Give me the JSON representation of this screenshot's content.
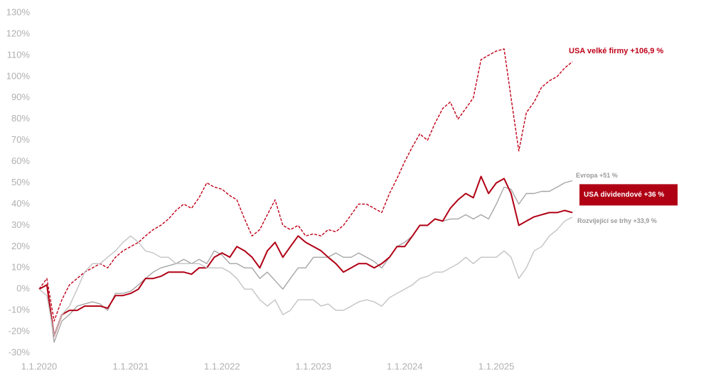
{
  "chart_data": {
    "type": "line",
    "x": [
      "2020-01-01",
      "2020-02-01",
      "2020-03-01",
      "2020-04-01",
      "2020-05-01",
      "2020-06-01",
      "2020-07-01",
      "2020-08-01",
      "2020-09-01",
      "2020-10-01",
      "2020-11-01",
      "2020-12-01",
      "2021-01-01",
      "2021-02-01",
      "2021-03-01",
      "2021-04-01",
      "2021-05-01",
      "2021-06-01",
      "2021-07-01",
      "2021-08-01",
      "2021-09-01",
      "2021-10-01",
      "2021-11-01",
      "2021-12-01",
      "2022-01-01",
      "2022-02-01",
      "2022-03-01",
      "2022-04-01",
      "2022-05-01",
      "2022-06-01",
      "2022-07-01",
      "2022-08-01",
      "2022-09-01",
      "2022-10-01",
      "2022-11-01",
      "2022-12-01",
      "2023-01-01",
      "2023-02-01",
      "2023-03-01",
      "2023-04-01",
      "2023-05-01",
      "2023-06-01",
      "2023-07-01",
      "2023-08-01",
      "2023-09-01",
      "2023-10-01",
      "2023-11-01",
      "2023-12-01",
      "2024-01-01",
      "2024-02-01",
      "2024-03-01",
      "2024-04-01",
      "2024-05-01",
      "2024-06-01",
      "2024-07-01",
      "2024-08-01",
      "2024-09-01",
      "2024-10-01",
      "2024-11-01",
      "2024-12-01",
      "2025-01-01",
      "2025-02-01",
      "2025-03-01",
      "2025-04-01",
      "2025-05-01",
      "2025-06-01",
      "2025-07-01",
      "2025-08-01",
      "2025-09-01",
      "2025-10-01",
      "2025-11-01"
    ],
    "xlim": [
      "2020-01-01",
      "2027-01-01"
    ],
    "xticks": [
      {
        "value": "2020-01-01",
        "label": "1.1.2020"
      },
      {
        "value": "2021-01-01",
        "label": "1.1.2021"
      },
      {
        "value": "2022-01-01",
        "label": "1.1.2022"
      },
      {
        "value": "2023-01-01",
        "label": "1.1.2023"
      },
      {
        "value": "2024-01-01",
        "label": "1.1.2024"
      },
      {
        "value": "2025-01-01",
        "label": "1.1.2025"
      }
    ],
    "ylim": [
      -30,
      130
    ],
    "yticks": [
      {
        "value": -30,
        "label": "-30%"
      },
      {
        "value": -20,
        "label": "-20%"
      },
      {
        "value": -10,
        "label": "-10%"
      },
      {
        "value": 0,
        "label": "0%"
      },
      {
        "value": 10,
        "label": "10%"
      },
      {
        "value": 20,
        "label": "20%"
      },
      {
        "value": 30,
        "label": "30%"
      },
      {
        "value": 40,
        "label": "40%"
      },
      {
        "value": 50,
        "label": "50%"
      },
      {
        "value": 60,
        "label": "60%"
      },
      {
        "value": 70,
        "label": "70%"
      },
      {
        "value": 80,
        "label": "80%"
      },
      {
        "value": 90,
        "label": "90%"
      },
      {
        "value": 100,
        "label": "100%"
      },
      {
        "value": 110,
        "label": "110%"
      },
      {
        "value": 120,
        "label": "120%"
      },
      {
        "value": 130,
        "label": "130%"
      }
    ],
    "grid": false,
    "series": [
      {
        "name": "USA velké firmy +106,9 %",
        "color": "#c00018",
        "line_style": "dashed",
        "label_style": "text",
        "values": [
          0,
          5,
          -15,
          -5,
          2,
          5,
          8,
          10,
          12,
          10,
          15,
          18,
          20,
          22,
          25,
          28,
          30,
          33,
          37,
          40,
          38,
          43,
          50,
          48,
          47,
          44,
          42,
          33,
          25,
          28,
          35,
          42,
          30,
          28,
          30,
          25,
          26,
          25,
          28,
          27,
          30,
          35,
          40,
          40,
          38,
          36,
          45,
          52,
          60,
          67,
          73,
          70,
          78,
          85,
          88,
          80,
          85,
          90,
          108,
          110,
          112,
          113,
          90,
          65,
          83,
          88,
          95,
          98,
          100,
          104,
          107
        ]
      },
      {
        "name": "Evropa +51 %",
        "color": "#a6a6a6",
        "line_style": "solid",
        "label_style": "text",
        "values": [
          0,
          2,
          -25,
          -15,
          -12,
          -8,
          -7,
          -6,
          -7,
          -10,
          -2,
          -2,
          -1,
          2,
          5,
          8,
          10,
          11,
          12,
          14,
          12,
          14,
          12,
          18,
          16,
          12,
          12,
          10,
          10,
          5,
          8,
          4,
          0,
          5,
          10,
          10,
          15,
          15,
          15,
          17,
          15,
          15,
          17,
          15,
          13,
          10,
          15,
          20,
          22,
          25,
          30,
          30,
          33,
          32,
          33,
          33,
          35,
          33,
          35,
          33,
          40,
          48,
          47,
          40,
          45,
          45,
          46,
          46,
          48,
          50,
          51
        ]
      },
      {
        "name": "USA dividendové +36 %",
        "color": "#b00014",
        "line_style": "solid",
        "label_style": "boxed",
        "values": [
          0,
          2,
          -22,
          -12,
          -10,
          -10,
          -8,
          -8,
          -8,
          -9,
          -3,
          -3,
          -2,
          0,
          5,
          5,
          6,
          8,
          8,
          8,
          7,
          10,
          10,
          15,
          17,
          15,
          20,
          18,
          15,
          10,
          18,
          22,
          15,
          20,
          25,
          22,
          20,
          18,
          15,
          12,
          8,
          10,
          12,
          12,
          10,
          12,
          15,
          20,
          20,
          25,
          30,
          30,
          33,
          32,
          38,
          42,
          45,
          43,
          53,
          45,
          50,
          52,
          45,
          30,
          32,
          34,
          35,
          36,
          36,
          37,
          36
        ]
      },
      {
        "name": "Rozvíjející se trhy +33,9 %",
        "color": "#c4c4c4",
        "line_style": "solid",
        "label_style": "text",
        "values": [
          0,
          -3,
          -22,
          -12,
          -8,
          0,
          8,
          12,
          12,
          15,
          18,
          22,
          25,
          22,
          18,
          17,
          15,
          15,
          12,
          12,
          12,
          12,
          10,
          10,
          10,
          8,
          5,
          0,
          0,
          -5,
          -8,
          -5,
          -12,
          -10,
          -5,
          -5,
          -5,
          -8,
          -7,
          -10,
          -10,
          -8,
          -6,
          -5,
          -6,
          -8,
          -4,
          -2,
          0,
          2,
          5,
          6,
          8,
          8,
          10,
          12,
          15,
          12,
          15,
          15,
          15,
          18,
          15,
          5,
          10,
          18,
          20,
          25,
          28,
          32,
          33.9
        ]
      }
    ]
  }
}
